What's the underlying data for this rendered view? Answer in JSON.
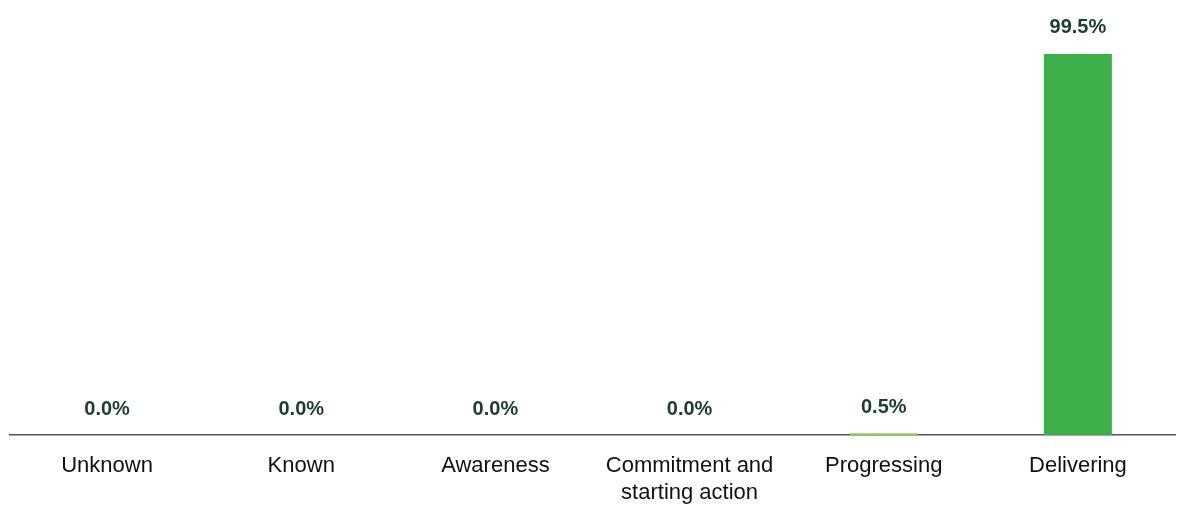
{
  "chart_data": {
    "type": "bar",
    "categories": [
      "Unknown",
      "Known",
      "Awareness",
      "Commitment and starting action",
      "Progressing",
      "Delivering"
    ],
    "values": [
      0.0,
      0.0,
      0.0,
      0.0,
      0.5,
      99.5
    ],
    "colors": [
      "#1e3a32",
      "#1e6b45",
      "#2a8a4a",
      "#3a9e4a",
      "#92d050",
      "#3daf4a"
    ],
    "value_labels": [
      "0.0%",
      "0.0%",
      "0.0%",
      "0.0%",
      "0.5%",
      "99.5%"
    ],
    "grid": false,
    "legend": false
  }
}
